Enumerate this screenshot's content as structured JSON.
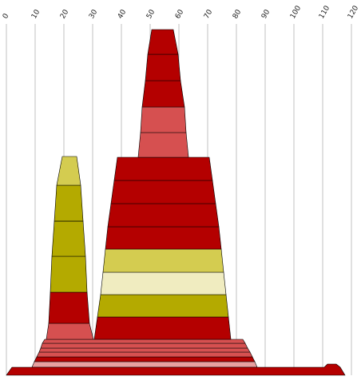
{
  "chart_data": {
    "type": "area",
    "subtype": "stacked stepped profile (waterfall-like layered shapes)",
    "x_axis": {
      "position": "top",
      "ticks": [
        0,
        10,
        20,
        30,
        40,
        50,
        60,
        70,
        80,
        90,
        100,
        110,
        120
      ],
      "tick_labels": [
        "0",
        "10",
        "20",
        "30",
        "40",
        "50",
        "60",
        "70",
        "80",
        "90",
        "100",
        "110",
        "120"
      ],
      "label_rotation_deg": -60,
      "range": [
        0,
        120
      ]
    },
    "grid": "vertical lines at each x tick",
    "colors": {
      "dark_red": "#b40000",
      "light_red": "#d65050",
      "pale_red": "#e8a0a0",
      "olive": "#b4aa00",
      "light_olive": "#d4cc50",
      "cream": "#f0ecc0",
      "grid": "#c0c0c0",
      "stroke": "#000000"
    },
    "shapes": [
      {
        "name": "base",
        "comment": "wide flat base spanning the axis, with a small bump near the right end",
        "layers": [
          {
            "x0": 1,
            "x1": 117,
            "x0b": 0,
            "x1b": 120,
            "color": "dark_red",
            "thickness": 10
          }
        ]
      },
      {
        "name": "mid-band",
        "comment": "wide trapezoid of thin stripes behind the main towers",
        "layers": [
          {
            "xl": 9,
            "xr": 88,
            "color": "pale_red"
          },
          {
            "xl": 10,
            "xr": 87,
            "color": "dark_red"
          },
          {
            "xl": 11,
            "xr": 86,
            "color": "light_red"
          },
          {
            "xl": 12,
            "xr": 85,
            "color": "light_red"
          },
          {
            "xl": 13,
            "xr": 84,
            "color": "light_red"
          },
          {
            "xl": 14,
            "xr": 83,
            "color": "light_red"
          }
        ]
      },
      {
        "name": "left-tower",
        "comment": "narrow tower centered near x = 22",
        "layers": [
          {
            "xb": 15,
            "xt": 15,
            "color": "light_red",
            "bottom_right": 30,
            "top_right": 29
          },
          {
            "color": "dark_red"
          },
          {
            "color": "olive"
          },
          {
            "color": "olive"
          },
          {
            "color": "olive"
          },
          {
            "color": "olive"
          },
          {
            "color": "light_olive"
          }
        ]
      },
      {
        "name": "center-tower",
        "comment": "wide trapezoid tower spanning about x = 31 to 78",
        "layers": [
          {
            "color": "dark_red"
          },
          {
            "color": "olive"
          },
          {
            "color": "cream"
          },
          {
            "color": "light_olive"
          },
          {
            "color": "dark_red"
          },
          {
            "color": "dark_red"
          },
          {
            "color": "dark_red"
          },
          {
            "color": "dark_red"
          }
        ]
      },
      {
        "name": "top-tower",
        "comment": "narrow tower on top of the center tower, around x = 47 to 61",
        "layers": [
          {
            "color": "light_red"
          },
          {
            "color": "light_red"
          },
          {
            "color": "dark_red"
          },
          {
            "color": "dark_red"
          },
          {
            "color": "dark_red"
          }
        ]
      }
    ]
  }
}
